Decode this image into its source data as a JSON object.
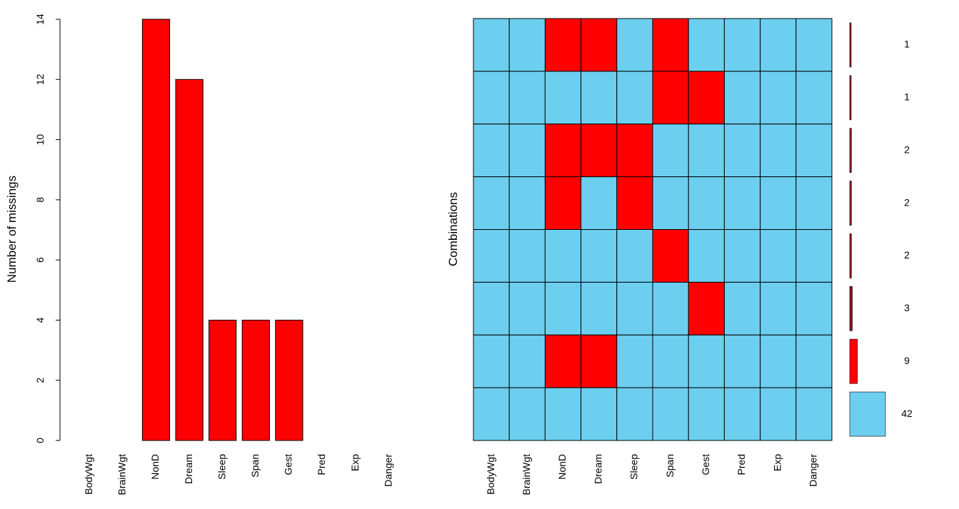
{
  "colors": {
    "missing": "#FF0000",
    "observed": "#6DCFF0",
    "missing_count_bar": "#8B1A1A",
    "frame": "#000000",
    "background": "#FFFFFF"
  },
  "chart_data": [
    {
      "type": "bar",
      "categories": [
        "BodyWgt",
        "BrainWgt",
        "NonD",
        "Dream",
        "Sleep",
        "Span",
        "Gest",
        "Pred",
        "Exp",
        "Danger"
      ],
      "values": [
        0,
        0,
        14,
        12,
        4,
        4,
        4,
        0,
        0,
        0
      ],
      "ylabel": "Number of missings",
      "xlabel": "",
      "ylim": [
        0,
        14
      ],
      "yticks": [
        0,
        2,
        4,
        6,
        8,
        10,
        12,
        14
      ],
      "tick_label_orientation": "vertical",
      "grid": false,
      "bar_color": "#FF0000"
    },
    {
      "type": "heatmap",
      "columns": [
        "BodyWgt",
        "BrainWgt",
        "NonD",
        "Dream",
        "Sleep",
        "Span",
        "Gest",
        "Pred",
        "Exp",
        "Danger"
      ],
      "ylabel": "Combinations",
      "cell_legend": {
        "missing": "#FF0000",
        "observed": "#6DCFF0"
      },
      "rows": [
        {
          "count": 1,
          "missing": [
            0,
            0,
            1,
            1,
            0,
            1,
            0,
            0,
            0,
            0
          ]
        },
        {
          "count": 1,
          "missing": [
            0,
            0,
            0,
            0,
            0,
            1,
            1,
            0,
            0,
            0
          ]
        },
        {
          "count": 2,
          "missing": [
            0,
            0,
            1,
            1,
            1,
            0,
            0,
            0,
            0,
            0
          ]
        },
        {
          "count": 2,
          "missing": [
            0,
            0,
            1,
            0,
            1,
            0,
            0,
            0,
            0,
            0
          ]
        },
        {
          "count": 2,
          "missing": [
            0,
            0,
            0,
            0,
            0,
            1,
            0,
            0,
            0,
            0
          ]
        },
        {
          "count": 3,
          "missing": [
            0,
            0,
            0,
            0,
            0,
            0,
            1,
            0,
            0,
            0
          ]
        },
        {
          "count": 9,
          "missing": [
            0,
            0,
            1,
            1,
            0,
            0,
            0,
            0,
            0,
            0
          ]
        },
        {
          "count": 42,
          "missing": [
            0,
            0,
            0,
            0,
            0,
            0,
            0,
            0,
            0,
            0
          ]
        }
      ],
      "grid": true
    }
  ]
}
